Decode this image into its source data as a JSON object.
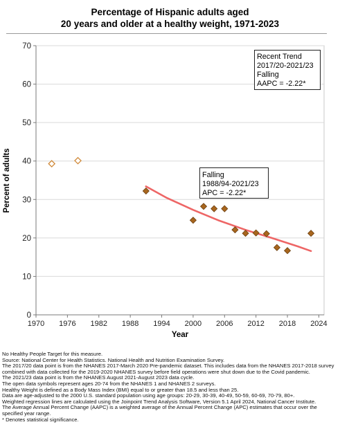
{
  "title_lines": [
    "Percentage of Hispanic adults aged",
    "20 years and older at a healthy weight, 1971-2023"
  ],
  "chart_data": {
    "type": "scatter",
    "xlabel": "Year",
    "ylabel": "Percent of adults",
    "xlim": [
      1970,
      2025
    ],
    "ylim": [
      0,
      70
    ],
    "x_ticks": [
      1970,
      1976,
      1982,
      1988,
      1994,
      2000,
      2006,
      2012,
      2018,
      2024
    ],
    "y_ticks": [
      0,
      10,
      20,
      30,
      40,
      50,
      60,
      70
    ],
    "grid": "horizontal",
    "series": [
      {
        "marker": "open-diamond",
        "color": "#d08a3a",
        "points": [
          {
            "x": 1973,
            "y": 39.3
          },
          {
            "x": 1978,
            "y": 40.1
          }
        ]
      },
      {
        "marker": "filled-diamond",
        "color": "#a8661e",
        "points": [
          {
            "x": 1991,
            "y": 32.2
          },
          {
            "x": 2000,
            "y": 24.6
          },
          {
            "x": 2002,
            "y": 28.2
          },
          {
            "x": 2004,
            "y": 27.6
          },
          {
            "x": 2006,
            "y": 27.6
          },
          {
            "x": 2008,
            "y": 22.1
          },
          {
            "x": 2010,
            "y": 21.2
          },
          {
            "x": 2012,
            "y": 21.3
          },
          {
            "x": 2014,
            "y": 21.1
          },
          {
            "x": 2016,
            "y": 17.5
          },
          {
            "x": 2018,
            "y": 16.7
          },
          {
            "x": 2022.5,
            "y": 21.2
          }
        ]
      }
    ],
    "trend_line": {
      "color": "#ee6666",
      "x": [
        1991,
        1995,
        2000,
        2005,
        2010,
        2015,
        2020,
        2022.5
      ],
      "y": [
        33.4,
        30.4,
        27.3,
        24.5,
        22.1,
        20.0,
        17.8,
        16.6
      ]
    },
    "annotations": [
      {
        "lines": [
          "Recent Trend",
          "2017/20-2021/23",
          "Falling",
          "AAPC = -2.22*"
        ]
      },
      {
        "lines": [
          "Falling",
          "1988/94-2021/23",
          "APC = -2.22*"
        ]
      }
    ]
  },
  "notes": [
    "No Healthy People Target for this measure.",
    "Source: National Center for Health Statistics. National Health and Nutrition Examination Survey.",
    "The 2017/20 data point is from the NHANES 2017-March 2020 Pre-pandemic dataset. This includes data from the NHANES 2017-2018 survey combined with data collected for the 2019-2020 NHANES survey before field operations were shut down due to the Covid pandemic.",
    "The 2021/23 data point is from the NHANES August 2021-August 2023 data cycle.",
    "The open data symbols represent ages 20-74 from the NHANES 1 and NHANES 2 surveys.",
    "Healthy Weight is defined as a Body Mass Index (BMI) equal to or greater than 18.5 and less than 25.",
    "Data are age-adjusted to the 2000 U.S. standard population using age groups: 20-29, 30-39, 40-49, 50-59, 60-69, 70-79, 80+.",
    "Weighted regression lines are calculated using the Joinpoint Trend Analysis Software, Version 5.1 April 2024, National Cancer Institute.",
    "The Average Annual Percent Change (AAPC) is a weighted average of the Annual Percent Change (APC) estimates that occur over the specified year range.",
    "* Denotes statistical significance."
  ]
}
